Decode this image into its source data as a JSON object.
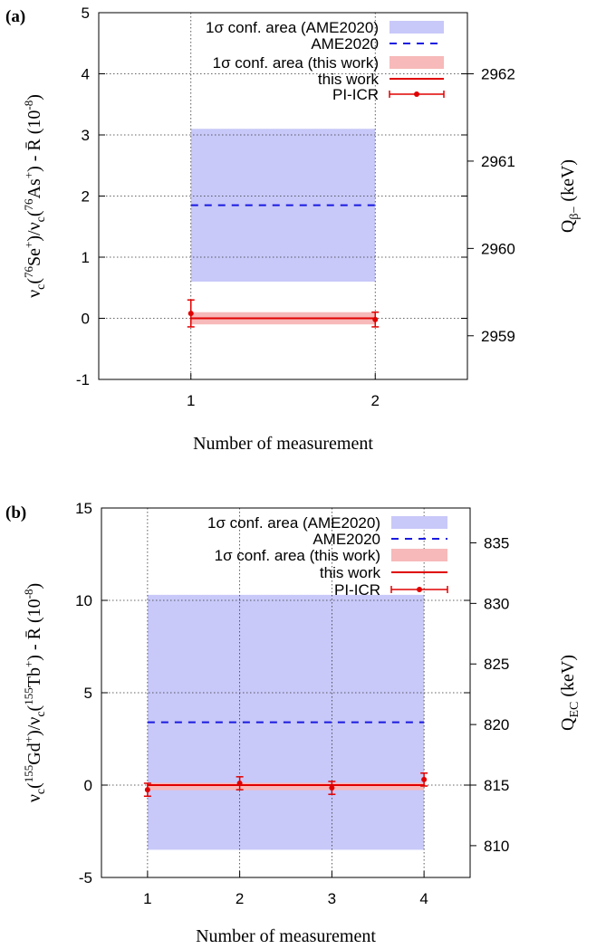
{
  "chart_data": [
    {
      "panel_label": "(a)",
      "type": "line",
      "xlabel": "Number of measurement",
      "ylabel": "ν_c(76Se+)/ν_c(76As+) - R̄ (10^-8)",
      "y2label": "Q_β− (keV)",
      "xlim": [
        0.5,
        2.5
      ],
      "ylim": [
        -1,
        5
      ],
      "xticks": [
        1,
        2
      ],
      "yticks": [
        -1,
        0,
        1,
        2,
        3,
        4,
        5
      ],
      "y2ticks": [
        2959,
        2960,
        2961,
        2962
      ],
      "y2_calibration": {
        "y": [
          0,
          1
        ],
        "y2": [
          2959.2,
          2959.9
        ]
      },
      "grid": true,
      "legend_position": "top-right",
      "legend": [
        "1σ conf. area (AME2020)",
        "AME2020",
        "1σ conf. area (this work)",
        "this work",
        "PI-ICR"
      ],
      "ame_band": {
        "x": [
          1,
          2
        ],
        "y_low": 0.6,
        "y_high": 3.1
      },
      "ame_value": 1.85,
      "this_work_band": {
        "x": [
          1,
          2
        ],
        "y_low": -0.1,
        "y_high": 0.1
      },
      "this_work_value": 0.0,
      "points": [
        {
          "x": 1,
          "y": 0.08,
          "err": 0.22
        },
        {
          "x": 2,
          "y": -0.02,
          "err": 0.12
        }
      ]
    },
    {
      "panel_label": "(b)",
      "type": "line",
      "xlabel": "Number of measurement",
      "ylabel": "ν_c(155Gd+)/ν_c(155Tb+) - R̄ (10^-8)",
      "y2label": "Q_EC (keV)",
      "xlim": [
        0.5,
        4.5
      ],
      "ylim": [
        -5,
        15
      ],
      "xticks": [
        1,
        2,
        3,
        4
      ],
      "yticks": [
        -5,
        0,
        5,
        10,
        15
      ],
      "y2ticks": [
        810,
        815,
        820,
        825,
        830,
        835
      ],
      "y2_calibration": {
        "y": [
          0,
          10
        ],
        "y2": [
          815.0,
          830.25
        ]
      },
      "grid": true,
      "legend_position": "top-right",
      "legend": [
        "1σ conf. area (AME2020)",
        "AME2020",
        "1σ conf. area (this work)",
        "this work",
        "PI-ICR"
      ],
      "ame_band": {
        "x": [
          1,
          4
        ],
        "y_low": -3.5,
        "y_high": 10.3
      },
      "ame_value": 3.4,
      "this_work_band": {
        "x": [
          1,
          4
        ],
        "y_low": -0.12,
        "y_high": 0.12
      },
      "this_work_value": 0.0,
      "points": [
        {
          "x": 1,
          "y": -0.25,
          "err": 0.35
        },
        {
          "x": 2,
          "y": 0.1,
          "err": 0.35
        },
        {
          "x": 3,
          "y": -0.15,
          "err": 0.35
        },
        {
          "x": 4,
          "y": 0.3,
          "err": 0.35
        }
      ]
    }
  ]
}
